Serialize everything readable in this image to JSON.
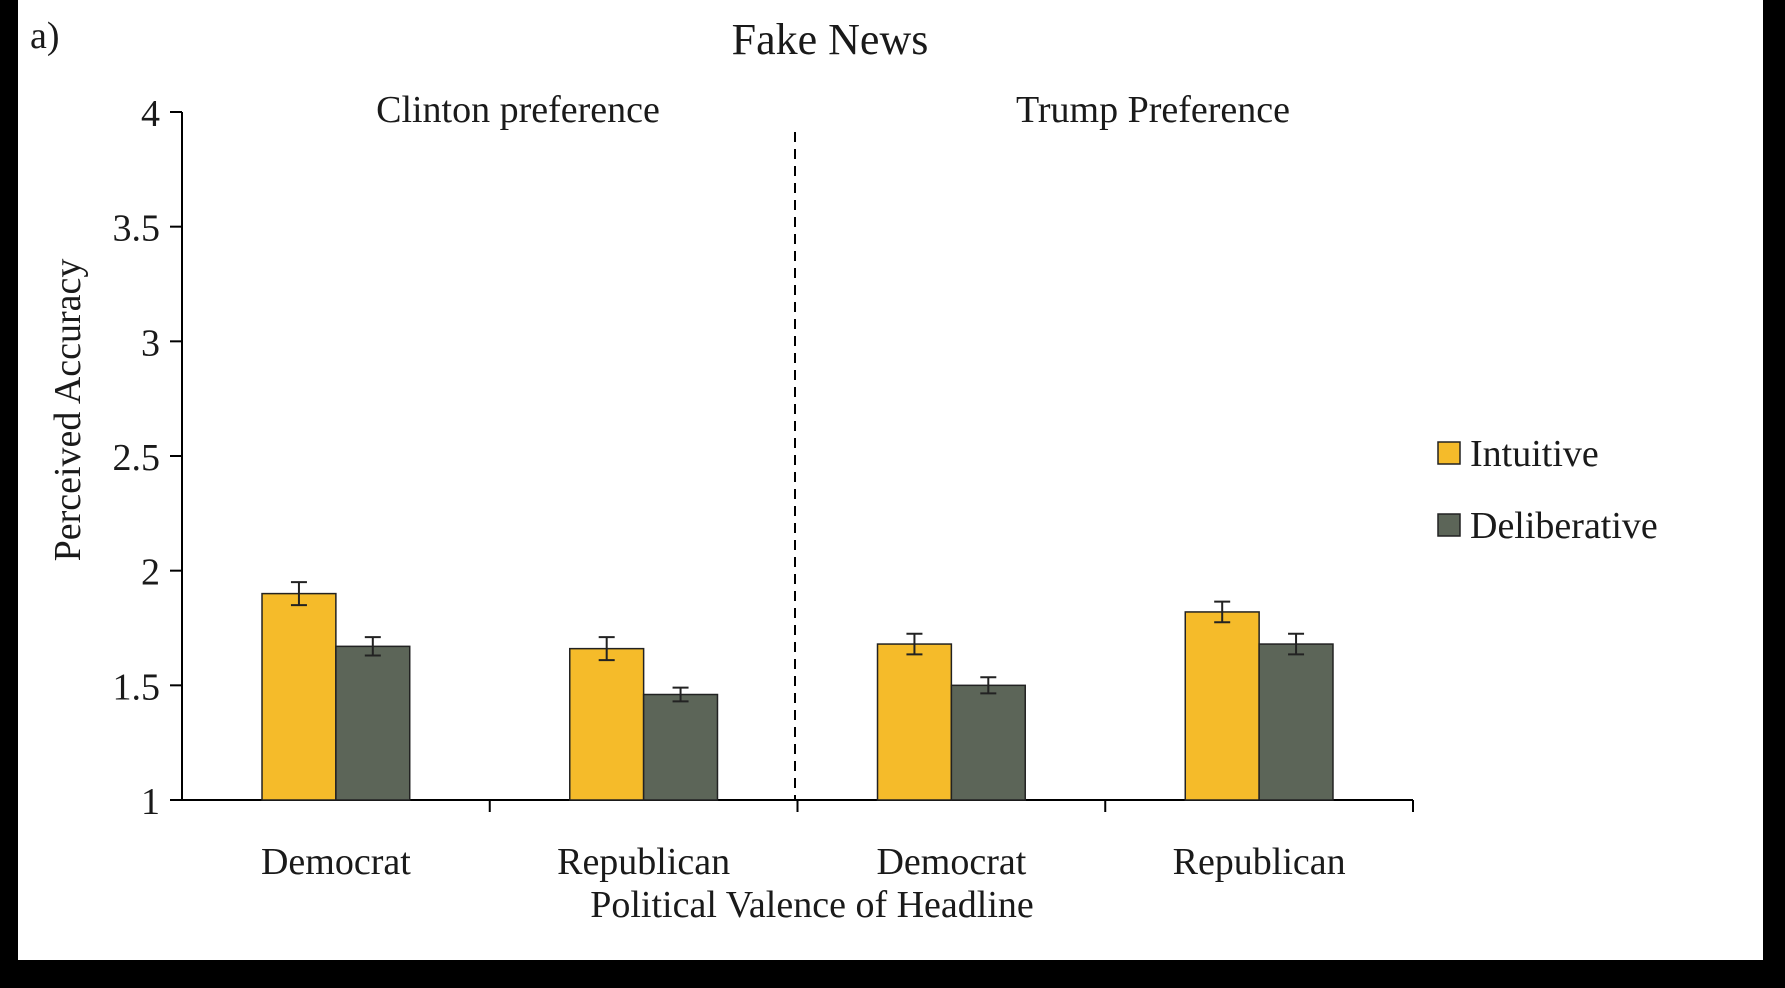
{
  "chart_data": {
    "type": "bar",
    "panel_label": "a)",
    "title": "Fake News",
    "ylabel": "Perceived Accuracy",
    "xlabel": "Political Valence of Headline",
    "ylim": [
      1,
      4
    ],
    "yticks": [
      "1",
      "1.5",
      "2",
      "2.5",
      "3",
      "3.5",
      "4"
    ],
    "groups": [
      "Clinton preference",
      "Trump Preference"
    ],
    "categories": [
      "Democrat",
      "Republican",
      "Democrat",
      "Republican"
    ],
    "series": [
      {
        "name": "Intuitive",
        "color": "#f5bb2a",
        "values": [
          1.9,
          1.66,
          1.68,
          1.82
        ],
        "errors": [
          0.05,
          0.05,
          0.045,
          0.045
        ]
      },
      {
        "name": "Deliberative",
        "color": "#5c6558",
        "values": [
          1.67,
          1.46,
          1.5,
          1.68
        ],
        "errors": [
          0.04,
          0.03,
          0.035,
          0.045
        ]
      }
    ],
    "legend_position": "right",
    "grid": false
  }
}
